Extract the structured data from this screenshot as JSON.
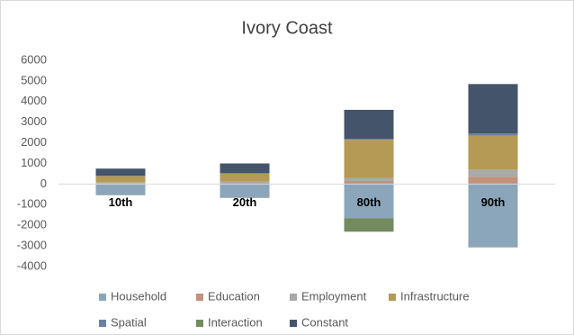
{
  "chart_data": {
    "type": "bar",
    "stacked": true,
    "title": "Ivory Coast",
    "categories": [
      "10th",
      "20th",
      "80th",
      "90th"
    ],
    "series": [
      {
        "name": "Household",
        "color": "#8ba6bb",
        "values": [
          -520,
          -650,
          -1660,
          -3050
        ]
      },
      {
        "name": "Education",
        "color": "#c4917b",
        "values": [
          30,
          40,
          150,
          350
        ]
      },
      {
        "name": "Employment",
        "color": "#a9a9a9",
        "values": [
          60,
          80,
          150,
          350
        ]
      },
      {
        "name": "Infrastructure",
        "color": "#b49a55",
        "values": [
          300,
          380,
          1850,
          1650
        ]
      },
      {
        "name": "Spatial",
        "color": "#6b7fa3",
        "values": [
          20,
          30,
          50,
          100
        ]
      },
      {
        "name": "Interaction",
        "color": "#738b5e",
        "values": [
          -20,
          -20,
          -650,
          -20
        ]
      },
      {
        "name": "Constant",
        "color": "#44546a",
        "values": [
          340,
          470,
          1400,
          2400
        ]
      }
    ],
    "ylim": [
      -4000,
      6000
    ],
    "yticks": [
      -4000,
      -3000,
      -2000,
      -1000,
      0,
      1000,
      2000,
      3000,
      4000,
      5000,
      6000
    ],
    "grid": false
  }
}
